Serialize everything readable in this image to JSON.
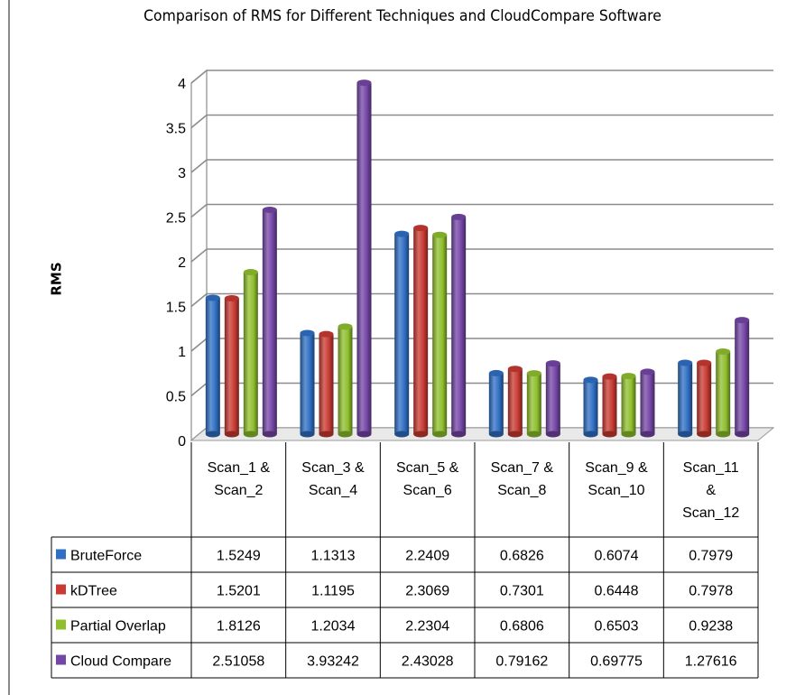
{
  "chart_data": {
    "type": "bar",
    "title": "Comparison of RMS for Different Techniques and CloudCompare Software",
    "ylabel": "RMS",
    "xlabel": "",
    "ylim": [
      0,
      4
    ],
    "y_ticks": [
      "0",
      "0.5",
      "1",
      "1.5",
      "2",
      "2.5",
      "3",
      "3.5",
      "4"
    ],
    "categories": [
      [
        "Scan_1 &",
        "Scan_2"
      ],
      [
        "Scan_3 &",
        "Scan_4"
      ],
      [
        "Scan_5 &",
        "Scan_6"
      ],
      [
        "Scan_7 &",
        "Scan_8"
      ],
      [
        "Scan_9 &",
        "Scan_10"
      ],
      [
        "Scan_11",
        "&",
        "Scan_12"
      ]
    ],
    "series": [
      {
        "name": "BruteForce",
        "color": "#2f6fc4",
        "values": [
          1.5249,
          1.1313,
          2.2409,
          0.6826,
          0.6074,
          0.7979
        ],
        "labels": [
          "1.5249",
          "1.1313",
          "2.2409",
          "0.6826",
          "0.6074",
          "0.7979"
        ]
      },
      {
        "name": "kDTree",
        "color": "#c83a32",
        "values": [
          1.5201,
          1.1195,
          2.3069,
          0.7301,
          0.6448,
          0.7978
        ],
        "labels": [
          "1.5201",
          "1.1195",
          "2.3069",
          "0.7301",
          "0.6448",
          "0.7978"
        ]
      },
      {
        "name": "Partial Overlap",
        "color": "#8fbf2e",
        "values": [
          1.8126,
          1.2034,
          2.2304,
          0.6806,
          0.6503,
          0.9238
        ],
        "labels": [
          "1.8126",
          "1.2034",
          "2.2304",
          "0.6806",
          "0.6503",
          "0.9238"
        ]
      },
      {
        "name": "Cloud Compare",
        "color": "#7446a6",
        "values": [
          2.51058,
          3.93242,
          2.43028,
          0.79162,
          0.69775,
          1.27616
        ],
        "labels": [
          "2.51058",
          "3.93242",
          "2.43028",
          "0.79162",
          "0.69775",
          "1.27616"
        ]
      }
    ],
    "grid": true,
    "legend": "data-table",
    "data_table": true
  }
}
